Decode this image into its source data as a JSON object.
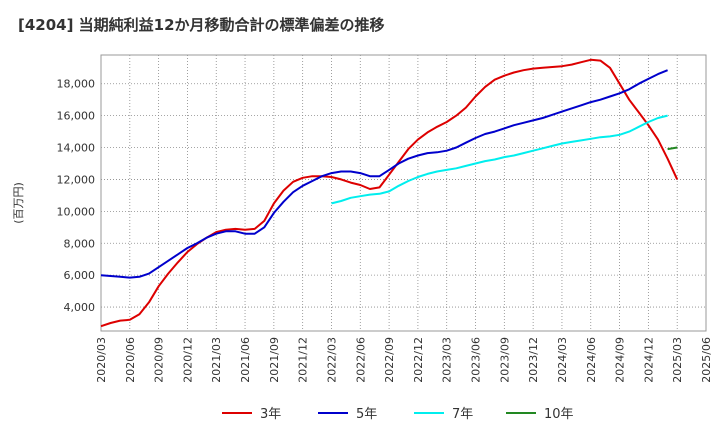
{
  "chart_data": {
    "type": "line",
    "title": "[4204]  当期純利益12か月移動合計の標準偏差の推移",
    "xlabel": "",
    "ylabel": "(百万円)",
    "ylim": [
      2500,
      19800
    ],
    "yticks": [
      4000,
      6000,
      8000,
      10000,
      12000,
      14000,
      16000,
      18000
    ],
    "ytick_labels": [
      "4,000",
      "6,000",
      "8,000",
      "10,000",
      "12,000",
      "14,000",
      "16,000",
      "18,000"
    ],
    "xticks": [
      "2020/03",
      "2020/06",
      "2020/09",
      "2020/12",
      "2021/03",
      "2021/06",
      "2021/09",
      "2021/12",
      "2022/03",
      "2022/06",
      "2022/09",
      "2022/12",
      "2023/03",
      "2023/06",
      "2023/09",
      "2023/12",
      "2024/03",
      "2024/06",
      "2024/09",
      "2024/12",
      "2025/03",
      "2025/06"
    ],
    "x_start": "2020/03",
    "grid": true,
    "legend_position": "bottom",
    "series": [
      {
        "name": "3年",
        "color": "#dd0000",
        "start_index": 0,
        "values": [
          2800,
          3000,
          3150,
          3200,
          3550,
          4300,
          5300,
          6100,
          6800,
          7450,
          7950,
          8350,
          8700,
          8850,
          8900,
          8850,
          8900,
          9400,
          10500,
          11300,
          11850,
          12100,
          12200,
          12200,
          12150,
          12000,
          11800,
          11650,
          11400,
          11500,
          12300,
          13100,
          13900,
          14500,
          14950,
          15300,
          15600,
          16000,
          16500,
          17200,
          17800,
          18250,
          18500,
          18700,
          18850,
          18950,
          19000,
          19050,
          19100,
          19200,
          19350,
          19500,
          19450,
          19000,
          18000,
          17000,
          16200,
          15400,
          14500,
          13300,
          12000
        ]
      },
      {
        "name": "5年",
        "color": "#0000cc",
        "start_index": 0,
        "values": [
          6000,
          5950,
          5900,
          5850,
          5900,
          6100,
          6500,
          6900,
          7300,
          7700,
          8000,
          8350,
          8600,
          8750,
          8750,
          8600,
          8600,
          9000,
          9900,
          10600,
          11200,
          11600,
          11900,
          12200,
          12400,
          12500,
          12500,
          12400,
          12200,
          12200,
          12600,
          13000,
          13300,
          13500,
          13650,
          13700,
          13800,
          14000,
          14300,
          14600,
          14850,
          15000,
          15200,
          15400,
          15550,
          15700,
          15850,
          16050,
          16250,
          16450,
          16650,
          16850,
          17000,
          17200,
          17400,
          17650,
          18000,
          18300,
          18600,
          18850
        ]
      },
      {
        "name": "7年",
        "color": "#00eeee",
        "start_index": 24,
        "values": [
          10500,
          10650,
          10850,
          10950,
          11050,
          11100,
          11250,
          11600,
          11900,
          12150,
          12350,
          12500,
          12600,
          12700,
          12850,
          13000,
          13150,
          13250,
          13400,
          13500,
          13650,
          13800,
          13950,
          14100,
          14250,
          14350,
          14450,
          14550,
          14650,
          14700,
          14800,
          15000,
          15300,
          15600,
          15850,
          16000
        ]
      },
      {
        "name": "10年",
        "color": "#228822",
        "start_index": 59,
        "values": [
          13900,
          14000
        ]
      }
    ]
  }
}
